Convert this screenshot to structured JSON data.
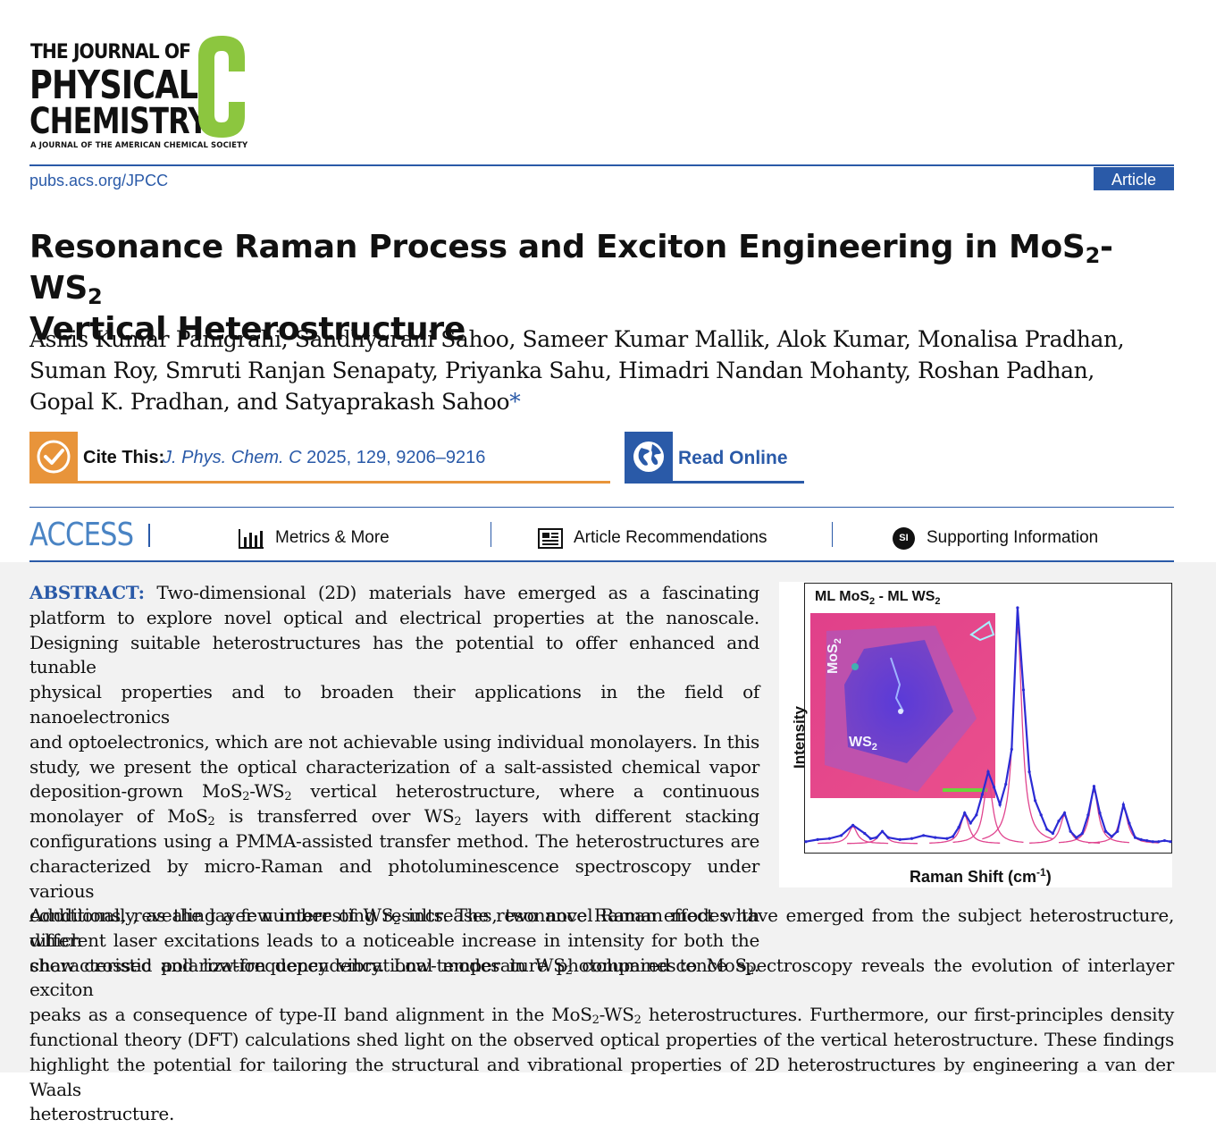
{
  "journal": {
    "logo_line1": "THE JOURNAL OF",
    "logo_line2": "PHYSICAL",
    "logo_line3": "CHEMISTRY",
    "logo_letter": "C",
    "logo_sub": "A JOURNAL OF THE AMERICAN CHEMICAL SOCIETY",
    "url": "pubs.acs.org/JPCC",
    "article_type": "Article",
    "brand_color": "#2a5aa8",
    "logo_c_color": "#8cc63f"
  },
  "title": {
    "part1": "Resonance Raman Process and Exciton Engineering in MoS",
    "sub1": "2",
    "part2": "-WS",
    "sub2": "2",
    "line2": "Vertical Heterostructure"
  },
  "authors": {
    "line1": "Ashis Kumar Panigrahi, Sandhyarani Sahoo, Sameer Kumar Mallik, Alok Kumar, Monalisa Pradhan,",
    "line2": "Suman Roy, Smruti Ranjan Senapaty, Priyanka Sahu, Himadri Nandan Mohanty, Roshan Padhan,",
    "line3": "Gopal K. Pradhan, and Satyaprakash Sahoo",
    "corresponding_mark": "*"
  },
  "cite": {
    "label": "Cite This:",
    "journal": "J. Phys. Chem. C",
    "details": "2025, 129, 9206–9216",
    "icon": "check-icon",
    "color": "#e8943a"
  },
  "read_online": {
    "label": "Read Online",
    "icon": "globe-icon"
  },
  "access": {
    "label": "ACCESS",
    "tabs": [
      {
        "label": "Metrics & More",
        "icon": "bar-chart-icon"
      },
      {
        "label": "Article Recommendations",
        "icon": "newspaper-icon"
      },
      {
        "label": "Supporting Information",
        "icon": "si-icon",
        "icon_text": "SI"
      }
    ]
  },
  "abstract": {
    "label": "ABSTRACT:",
    "lines": [
      "Two-dimensional (2D) materials have emerged as a fascinating",
      "platform to explore novel optical and electrical properties at the nanoscale.",
      "Designing suitable heterostructures has the potential to offer enhanced and tunable",
      "physical properties and to broaden their applications in the field of nanoelectronics",
      "and optoelectronics, which are not achievable using individual monolayers. In this",
      "study, we present the optical characterization of a salt-assisted chemical vapor"
    ],
    "l7a": "deposition-grown MoS",
    "l7b": "-WS",
    "l7c": " vertical heterostructure, where a continuous",
    "l8a": "monolayer of MoS",
    "l8b": " is transferred over WS",
    "l8c": " layers with different stacking",
    "l9": "configurations using a PMMA-assisted transfer method. The heterostructures are",
    "l10": "characterized by micro-Raman and photoluminescence spectroscopy under various",
    "l11": "conditions, revealing a few interesting results. The resonance Raman effect with",
    "l12": "different laser excitations leads to a noticeable increase in intensity for both the",
    "l13a": "characteristic and low-frequency vibrational modes in WS",
    "l13b": " compared to MoS",
    "l13c": ".",
    "l14a": "Additionally, as the layer number of WS",
    "l14b": " increases, two novel Raman modes have emerged from the subject heterostructure, which",
    "l15": "show crossed polarization dependency. Low-temperature photoluminescence spectroscopy reveals the evolution of interlayer exciton",
    "l16a": "peaks as a consequence of type-II band alignment in the MoS",
    "l16b": "-WS",
    "l16c": " heterostructures. Furthermore, our first-principles density",
    "l17": "functional theory (DFT) calculations shed light on the observed optical properties of the vertical heterostructure. These findings",
    "l18": "highlight the potential for tailoring the structural and vibrational properties of 2D heterostructures by engineering a van der Waals",
    "l19": "heterostructure.",
    "sub": "2"
  },
  "figure": {
    "title_a": "ML MoS",
    "title_b": " - ML WS",
    "sub": "2",
    "micro_label_mos": "MoS",
    "micro_label_ws": "WS",
    "chart_data": {
      "type": "line",
      "xlabel_a": "Raman Shift (cm",
      "xlabel_sup": "-1",
      "xlabel_b": ")",
      "ylabel": "Intensity",
      "series_color": "#2b2bd4",
      "fit_color": "#e0458f",
      "x": [
        0,
        10,
        20,
        30,
        40,
        50,
        55,
        60,
        65,
        70,
        80,
        90,
        100,
        110,
        120,
        125,
        130,
        135,
        140,
        145,
        150,
        155,
        160,
        165,
        170,
        175,
        180,
        185,
        190,
        195,
        200,
        205,
        210,
        215,
        220,
        225,
        230,
        235,
        240,
        245,
        250,
        255,
        260,
        265,
        270,
        275,
        280,
        285,
        290,
        295,
        300,
        305,
        310
      ],
      "values": [
        2,
        4,
        5,
        8,
        18,
        10,
        5,
        6,
        12,
        6,
        4,
        5,
        8,
        6,
        5,
        7,
        16,
        30,
        20,
        28,
        48,
        70,
        55,
        38,
        58,
        92,
        230,
        150,
        70,
        42,
        28,
        14,
        10,
        22,
        30,
        12,
        6,
        10,
        28,
        56,
        30,
        12,
        7,
        12,
        38,
        20,
        6,
        4,
        3,
        2,
        2,
        3,
        2
      ]
    }
  }
}
